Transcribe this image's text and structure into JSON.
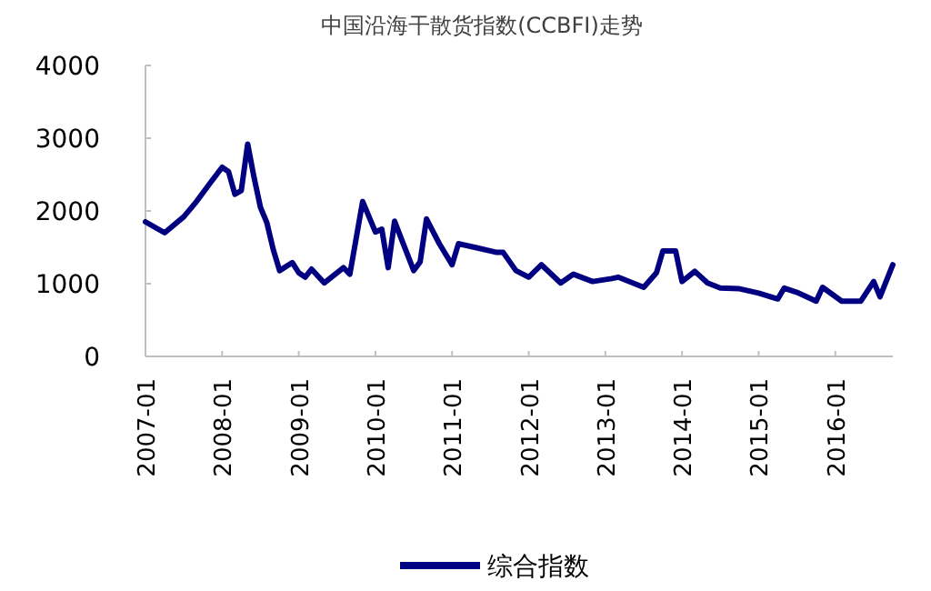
{
  "chart_data": {
    "type": "line",
    "title": "中国沿海干散货指数(CCBFI)走势",
    "xlim": [
      "2007-01",
      "2016-10"
    ],
    "xticks": [
      "2007-01",
      "2008-01",
      "2009-01",
      "2010-01",
      "2011-01",
      "2012-01",
      "2013-01",
      "2014-01",
      "2015-01",
      "2016-01"
    ],
    "ylim": [
      0,
      4000
    ],
    "yticks": [
      0,
      1000,
      2000,
      3000,
      4000
    ],
    "grid": false,
    "legend": "bottom",
    "marker": "none",
    "line_style": "solid",
    "series": [
      {
        "name": "综合指数",
        "color": "#000080",
        "x": [
          "2007-01",
          "2007-04",
          "2007-07",
          "2007-09",
          "2007-11",
          "2008-01",
          "2008-02",
          "2008-03",
          "2008-04",
          "2008-05",
          "2008-06",
          "2008-07",
          "2008-08",
          "2008-09",
          "2008-10",
          "2008-12",
          "2009-01",
          "2009-02",
          "2009-03",
          "2009-05",
          "2009-08",
          "2009-09",
          "2009-11",
          "2010-01",
          "2010-02",
          "2010-03",
          "2010-04",
          "2010-05",
          "2010-07",
          "2010-08",
          "2010-09",
          "2010-11",
          "2011-01",
          "2011-02",
          "2011-05",
          "2011-08",
          "2011-09",
          "2011-11",
          "2012-01",
          "2012-03",
          "2012-06",
          "2012-08",
          "2012-11",
          "2013-02",
          "2013-03",
          "2013-07",
          "2013-09",
          "2013-10",
          "2013-12",
          "2014-01",
          "2014-03",
          "2014-05",
          "2014-07",
          "2014-10",
          "2015-01",
          "2015-04",
          "2015-05",
          "2015-07",
          "2015-10",
          "2015-11",
          "2016-02",
          "2016-05",
          "2016-07",
          "2016-08",
          "2016-10"
        ],
        "values": [
          1850,
          1700,
          1920,
          2130,
          2370,
          2600,
          2540,
          2230,
          2280,
          2920,
          2460,
          2050,
          1840,
          1470,
          1180,
          1290,
          1150,
          1090,
          1200,
          1010,
          1220,
          1130,
          2130,
          1710,
          1750,
          1220,
          1860,
          1630,
          1180,
          1300,
          1890,
          1550,
          1260,
          1550,
          1490,
          1430,
          1430,
          1180,
          1090,
          1260,
          1010,
          1130,
          1030,
          1070,
          1090,
          950,
          1150,
          1450,
          1450,
          1030,
          1170,
          1010,
          940,
          930,
          870,
          790,
          940,
          880,
          760,
          950,
          760,
          760,
          1030,
          820,
          1260
        ]
      }
    ]
  }
}
